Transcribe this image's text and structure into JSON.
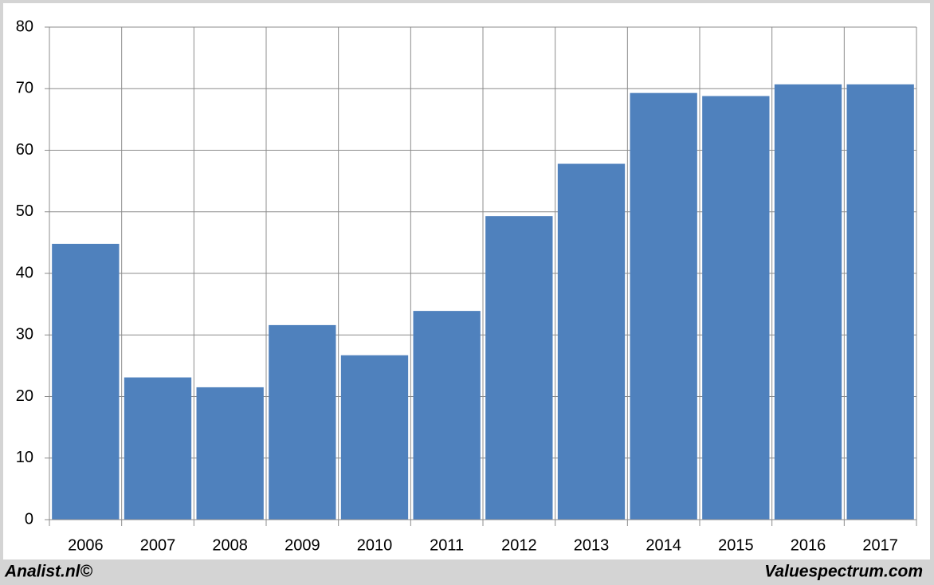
{
  "chart_data": {
    "type": "bar",
    "categories": [
      "2006",
      "2007",
      "2008",
      "2009",
      "2010",
      "2011",
      "2012",
      "2013",
      "2014",
      "2015",
      "2016",
      "2017"
    ],
    "values": [
      44.8,
      23.1,
      21.5,
      31.6,
      26.7,
      33.9,
      49.3,
      57.8,
      69.3,
      68.8,
      70.7,
      70.7
    ],
    "color": "#4f81bd",
    "ylim": [
      0,
      80
    ],
    "yticks": [
      0,
      10,
      20,
      30,
      40,
      50,
      60,
      70,
      80
    ],
    "grid": true,
    "credits": [
      "Analist.nl©",
      "Valuespectrum.com"
    ]
  }
}
